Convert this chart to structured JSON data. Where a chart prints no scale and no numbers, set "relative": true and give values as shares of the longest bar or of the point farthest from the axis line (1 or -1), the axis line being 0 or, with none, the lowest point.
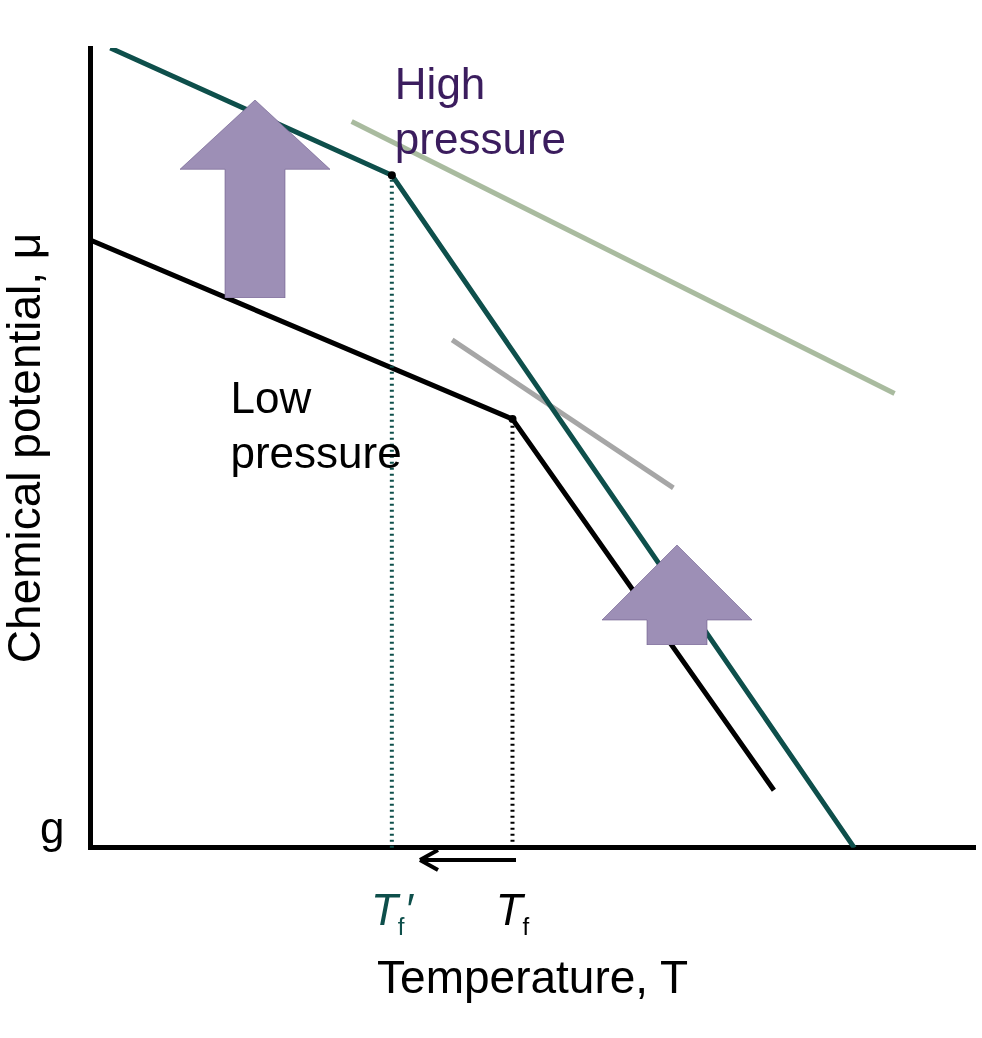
{
  "chart_data": {
    "type": "line",
    "relative": true,
    "xlabel": "Temperature, T",
    "ylabel": "Chemical potential, μ",
    "tick_labels": "x",
    "grid": false,
    "legend": false,
    "categories": [
      null,
      null,
      null,
      null,
      null,
      null,
      null,
      null,
      null,
      null,
      null,
      null,
      null,
      null,
      null,
      "T$_{f}$′",
      null,
      null,
      null,
      null,
      null,
      "T$_{f}$",
      null,
      null,
      null,
      null,
      null,
      null,
      null,
      null,
      null,
      null,
      null,
      null,
      null,
      null,
      null,
      null,
      null,
      null,
      null,
      null,
      null,
      null,
      null
    ],
    "series": [
      {
        "name": "Low pressure",
        "color": "#000000",
        "values": [
          0.76,
          null,
          null,
          null,
          null,
          null,
          null,
          null,
          null,
          null,
          null,
          null,
          null,
          null,
          null,
          null,
          null,
          null,
          null,
          null,
          null,
          0.536,
          null,
          null,
          null,
          null,
          null,
          null,
          null,
          null,
          null,
          null,
          null,
          null,
          0.072,
          null,
          null,
          null,
          null,
          null,
          null,
          null,
          null,
          null,
          null
        ]
      },
      {
        "name": "High pressure",
        "color": "#0e4f4b",
        "values": [
          null,
          1,
          null,
          null,
          null,
          null,
          null,
          null,
          null,
          null,
          null,
          null,
          null,
          null,
          null,
          0.841,
          null,
          null,
          null,
          null,
          null,
          null,
          null,
          null,
          null,
          null,
          null,
          null,
          null,
          null,
          null,
          null,
          null,
          null,
          null,
          null,
          null,
          null,
          0,
          null,
          null,
          null,
          null,
          null,
          null
        ]
      },
      {
        "color": "#a9bb9f",
        "values": [
          null,
          null,
          null,
          null,
          null,
          null,
          null,
          null,
          null,
          null,
          null,
          null,
          null,
          0.908,
          null,
          null,
          null,
          null,
          null,
          null,
          null,
          null,
          null,
          null,
          null,
          null,
          null,
          null,
          null,
          null,
          null,
          null,
          null,
          null,
          null,
          null,
          null,
          null,
          null,
          null,
          0.568,
          null,
          null,
          null,
          null
        ]
      },
      {
        "color": "#a6a6a6",
        "values": [
          null,
          null,
          null,
          null,
          null,
          null,
          null,
          null,
          null,
          null,
          null,
          null,
          null,
          null,
          null,
          null,
          null,
          null,
          0.635,
          null,
          null,
          null,
          null,
          null,
          null,
          null,
          null,
          null,
          null,
          0.45,
          null,
          null,
          null,
          null,
          null,
          null,
          null,
          null,
          null,
          null,
          null,
          null,
          null,
          null,
          null
        ]
      }
    ],
    "ref_lines": [
      {
        "axis": "x",
        "value": "T$_{f}$′",
        "color": "#0e4f4b",
        "line_style": "dotted"
      },
      {
        "axis": "x",
        "value": "T$_{f}$",
        "color": "#000000",
        "line_style": "dotted"
      }
    ],
    "annotations": [
      "g"
    ]
  }
}
